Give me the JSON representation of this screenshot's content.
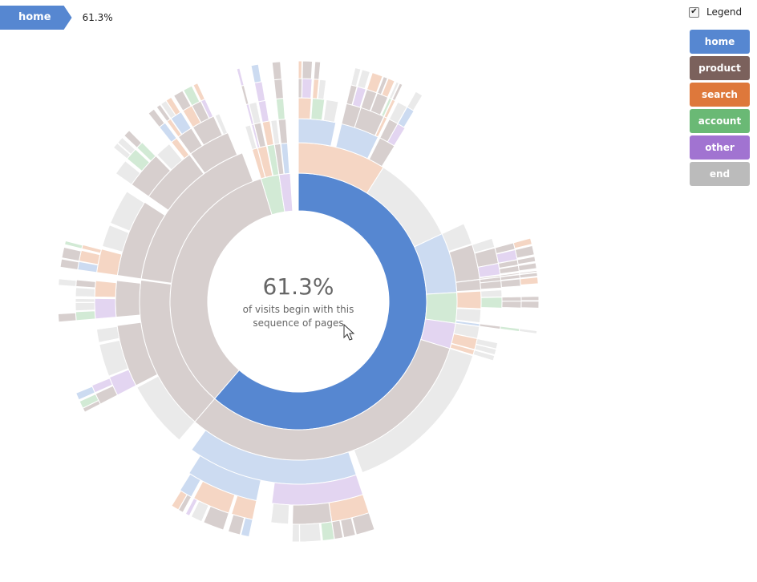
{
  "breadcrumb": {
    "items": [
      {
        "label": "home",
        "color": "#5687d1"
      }
    ],
    "percentage": "61.3%"
  },
  "legend": {
    "toggle_label": "Legend",
    "checked": true,
    "items": [
      {
        "label": "home",
        "color": "#5687d1"
      },
      {
        "label": "product",
        "color": "#7b615c"
      },
      {
        "label": "search",
        "color": "#de783b"
      },
      {
        "label": "account",
        "color": "#6ab975"
      },
      {
        "label": "other",
        "color": "#a173d1"
      },
      {
        "label": "end",
        "color": "#bbbbbb"
      }
    ]
  },
  "center": {
    "percentage": "61.3%",
    "description": "of visits begin with this sequence of pages"
  },
  "chart_data": {
    "type": "sunburst",
    "highlighted_sequence": [
      "home"
    ],
    "highlighted_percentage": 61.3,
    "categories": [
      "home",
      "product",
      "search",
      "account",
      "other",
      "end"
    ],
    "level1": [
      {
        "name": "home",
        "share": 61.3
      },
      {
        "name": "product",
        "share": 34.0
      },
      {
        "name": "account",
        "share": 2.3
      },
      {
        "name": "other",
        "share": 1.4
      }
    ],
    "level2_under_home": [
      {
        "name": "search",
        "share_of_total": 9.0
      },
      {
        "name": "end",
        "share_of_total": 9.0
      },
      {
        "name": "home",
        "share_of_total": 6.1
      },
      {
        "name": "account",
        "share_of_total": 3.1
      },
      {
        "name": "other",
        "share_of_total": 2.6
      },
      {
        "name": "product",
        "share_of_total": 31.5
      }
    ]
  }
}
